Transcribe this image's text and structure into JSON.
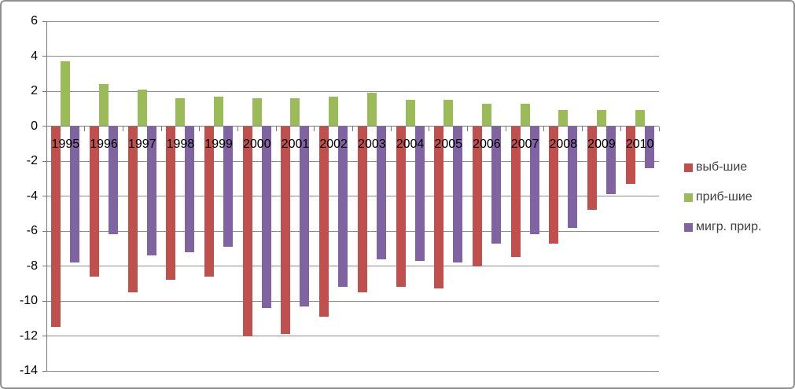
{
  "chart_data": {
    "type": "bar",
    "title": "",
    "categories": [
      "1995",
      "1996",
      "1997",
      "1998",
      "1999",
      "2000",
      "2001",
      "2002",
      "2003",
      "2004",
      "2005",
      "2006",
      "2007",
      "2008",
      "2009",
      "2010"
    ],
    "series": [
      {
        "name": "выб-шие",
        "color": "#C0504D",
        "values": [
          -11.5,
          -8.6,
          -9.5,
          -8.8,
          -8.6,
          -12.0,
          -11.9,
          -10.9,
          -9.5,
          -9.2,
          -9.3,
          -8.0,
          -7.5,
          -6.7,
          -4.8,
          -3.3
        ]
      },
      {
        "name": "приб-шие",
        "color": "#9BBB59",
        "values": [
          3.7,
          2.4,
          2.1,
          1.6,
          1.7,
          1.6,
          1.6,
          1.7,
          1.9,
          1.5,
          1.5,
          1.3,
          1.3,
          0.9,
          0.9,
          0.9
        ]
      },
      {
        "name": "мигр. прир.",
        "color": "#8064A2",
        "values": [
          -7.8,
          -6.2,
          -7.4,
          -7.2,
          -6.9,
          -10.4,
          -10.3,
          -9.2,
          -7.6,
          -7.7,
          -7.8,
          -6.7,
          -6.2,
          -5.8,
          -3.9,
          -2.4
        ]
      }
    ],
    "ylim": [
      -14,
      6
    ],
    "yticks": [
      6,
      4,
      2,
      0,
      -2,
      -4,
      -6,
      -8,
      -10,
      -12,
      -14
    ],
    "xlabel": "",
    "ylabel": "",
    "grid": true,
    "legend_position": "right",
    "colors": {
      "gridline": "#8D8D8D",
      "axis": "#7A7A7A",
      "frame_border": "#919191",
      "axis_text": "#000000",
      "legend_text": "#3F3F3F",
      "background": "#FFFFFF"
    }
  }
}
